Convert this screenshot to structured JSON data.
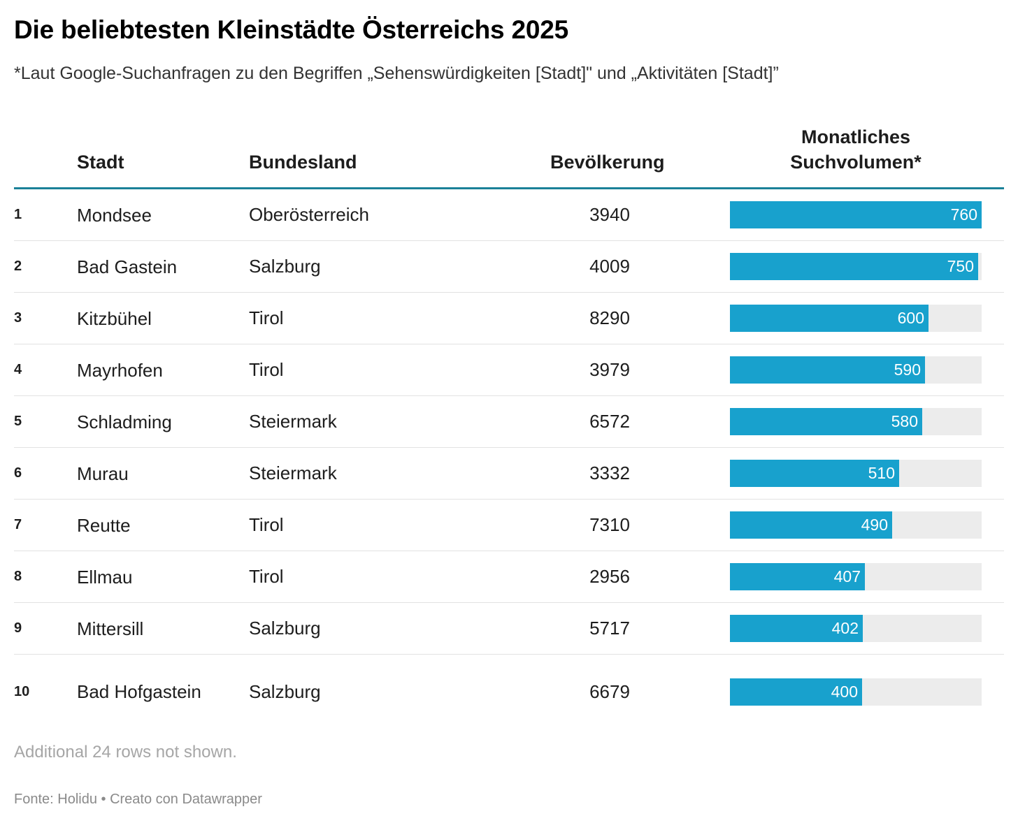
{
  "title": "Die beliebtesten Kleinstädte Österreichs 2025",
  "subtitle": "*Laut Google-Suchanfragen zu den Begriffen „Sehenswürdigkeiten [Stadt]\" und „Aktivitäten [Stadt]”",
  "columns": {
    "rank": "",
    "city": "Stadt",
    "state": "Bundesland",
    "population": "Bevölkerung",
    "volume_line1": "Monatliches",
    "volume_line2": "Suchvolumen*"
  },
  "note": "Additional 24 rows not shown.",
  "footer": "Fonte: Holidu • Creato con Datawrapper",
  "colors": {
    "accent": "#1a8198",
    "bar": "#18a1cd",
    "bar_background": "#ececec"
  },
  "chart_data": {
    "type": "table",
    "title": "Die beliebtesten Kleinstädte Österreichs 2025",
    "bar_column": "Monatliches Suchvolumen*",
    "bar_max": 760,
    "rows": [
      {
        "rank": "1",
        "city": "Mondsee",
        "state": "Oberösterreich",
        "population": "3940",
        "volume": 760
      },
      {
        "rank": "2",
        "city": "Bad Gastein",
        "state": "Salzburg",
        "population": "4009",
        "volume": 750
      },
      {
        "rank": "3",
        "city": "Kitzbühel",
        "state": "Tirol",
        "population": "8290",
        "volume": 600
      },
      {
        "rank": "4",
        "city": "Mayrhofen",
        "state": "Tirol",
        "population": "3979",
        "volume": 590
      },
      {
        "rank": "5",
        "city": "Schladming",
        "state": "Steiermark",
        "population": "6572",
        "volume": 580
      },
      {
        "rank": "6",
        "city": "Murau",
        "state": "Steiermark",
        "population": "3332",
        "volume": 510
      },
      {
        "rank": "7",
        "city": "Reutte",
        "state": "Tirol",
        "population": "7310",
        "volume": 490
      },
      {
        "rank": "8",
        "city": "Ellmau",
        "state": "Tirol",
        "population": "2956",
        "volume": 407
      },
      {
        "rank": "9",
        "city": "Mittersill",
        "state": "Salzburg",
        "population": "5717",
        "volume": 402
      },
      {
        "rank": "10",
        "city": "Bad Hofgastein",
        "state": "Salzburg",
        "population": "6679",
        "volume": 400
      }
    ]
  }
}
